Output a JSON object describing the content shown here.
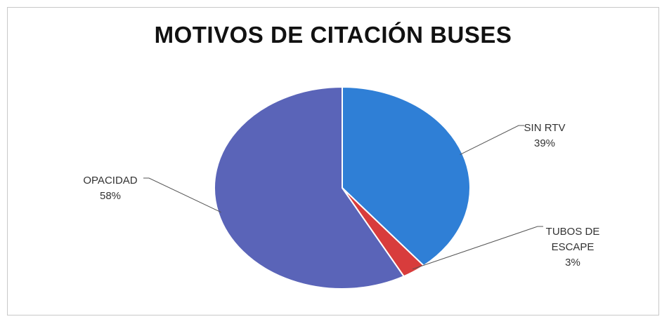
{
  "chart_data": {
    "type": "pie",
    "title": "MOTIVOS DE CITACIÓN BUSES",
    "slices": [
      {
        "label": "SIN RTV",
        "value": 39,
        "display": "39%",
        "color": "#2f7fd6",
        "label_lines": [
          "SIN RTV"
        ]
      },
      {
        "label": "TUBOS DE ESCAPE",
        "value": 3,
        "display": "3%",
        "color": "#d83c3c",
        "label_lines": [
          "TUBOS DE",
          "ESCAPE"
        ]
      },
      {
        "label": "OPACIDAD",
        "value": 58,
        "display": "58%",
        "color": "#5a64b8",
        "label_lines": [
          "OPACIDAD"
        ]
      }
    ],
    "legend": "none",
    "grid": false
  }
}
